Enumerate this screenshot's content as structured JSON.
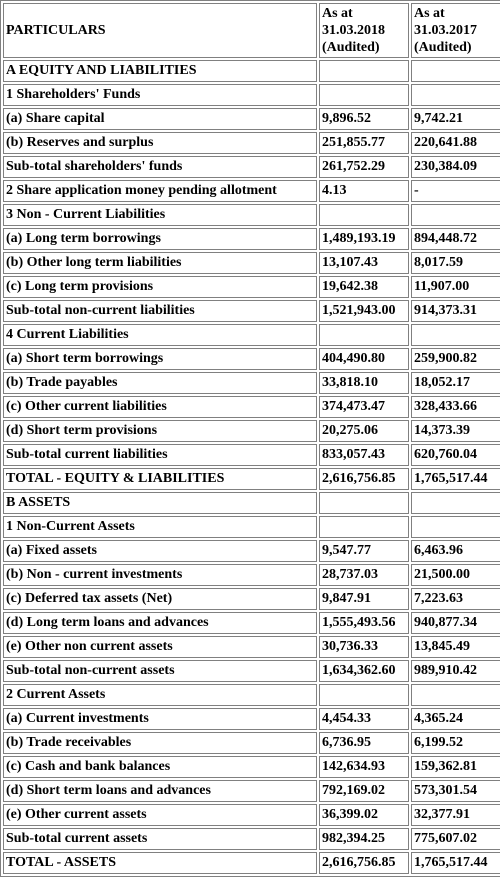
{
  "header": {
    "particulars": "PARTICULARS",
    "col1": "As at\n31.03.2018\n(Audited)",
    "col2": "As at\n31.03.2017\n(Audited)"
  },
  "rows": [
    {
      "label": "A EQUITY AND LIABILITIES",
      "v1": "",
      "v2": ""
    },
    {
      "label": "1 Shareholders' Funds",
      "v1": "",
      "v2": ""
    },
    {
      "label": "(a) Share capital",
      "v1": "9,896.52",
      "v2": "9,742.21"
    },
    {
      "label": "(b) Reserves and surplus",
      "v1": "251,855.77",
      "v2": "220,641.88"
    },
    {
      "label": "Sub-total shareholders' funds",
      "v1": "261,752.29",
      "v2": "230,384.09"
    },
    {
      "label": "2 Share application money pending allotment",
      "v1": "4.13",
      "v2": "-"
    },
    {
      "label": "3 Non - Current Liabilities",
      "v1": "",
      "v2": ""
    },
    {
      "label": "(a) Long term borrowings",
      "v1": "1,489,193.19",
      "v2": "894,448.72"
    },
    {
      "label": "(b) Other long term liabilities",
      "v1": "13,107.43",
      "v2": "8,017.59"
    },
    {
      "label": "(c) Long term provisions",
      "v1": "19,642.38",
      "v2": "11,907.00"
    },
    {
      "label": "Sub-total non-current liabilities",
      "v1": "1,521,943.00",
      "v2": "914,373.31"
    },
    {
      "label": "4 Current Liabilities",
      "v1": "",
      "v2": ""
    },
    {
      "label": "(a) Short term borrowings",
      "v1": "404,490.80",
      "v2": "259,900.82"
    },
    {
      "label": "(b) Trade payables",
      "v1": "33,818.10",
      "v2": "18,052.17"
    },
    {
      "label": "(c) Other current liabilities",
      "v1": "374,473.47",
      "v2": "328,433.66"
    },
    {
      "label": "(d) Short term provisions",
      "v1": "20,275.06",
      "v2": "14,373.39"
    },
    {
      "label": "Sub-total current liabilities",
      "v1": "833,057.43",
      "v2": "620,760.04"
    },
    {
      "label": "TOTAL - EQUITY & LIABILITIES",
      "v1": "2,616,756.85",
      "v2": "1,765,517.44"
    },
    {
      "label": "B ASSETS",
      "v1": "",
      "v2": ""
    },
    {
      "label": "1 Non-Current Assets",
      "v1": "",
      "v2": ""
    },
    {
      "label": "(a) Fixed assets",
      "v1": "9,547.77",
      "v2": "6,463.96"
    },
    {
      "label": "(b) Non - current investments",
      "v1": "28,737.03",
      "v2": "21,500.00"
    },
    {
      "label": "(c) Deferred tax assets (Net)",
      "v1": "9,847.91",
      "v2": "7,223.63"
    },
    {
      "label": "(d) Long term loans and advances",
      "v1": "1,555,493.56",
      "v2": "940,877.34"
    },
    {
      "label": "(e) Other non current assets",
      "v1": "30,736.33",
      "v2": "13,845.49"
    },
    {
      "label": "Sub-total non-current assets",
      "v1": "1,634,362.60",
      "v2": "989,910.42"
    },
    {
      "label": "2 Current Assets",
      "v1": "",
      "v2": ""
    },
    {
      "label": "(a) Current investments",
      "v1": "4,454.33",
      "v2": "4,365.24"
    },
    {
      "label": "(b) Trade receivables",
      "v1": "6,736.95",
      "v2": "6,199.52"
    },
    {
      "label": "(c) Cash and bank balances",
      "v1": "142,634.93",
      "v2": "159,362.81"
    },
    {
      "label": "(d) Short term loans and advances",
      "v1": "792,169.02",
      "v2": "573,301.54"
    },
    {
      "label": "(e) Other current assets",
      "v1": "36,399.02",
      "v2": "32,377.91"
    },
    {
      "label": "Sub-total current assets",
      "v1": "982,394.25",
      "v2": "775,607.02"
    },
    {
      "label": "TOTAL - ASSETS",
      "v1": "2,616,756.85",
      "v2": "1,765,517.44"
    }
  ]
}
